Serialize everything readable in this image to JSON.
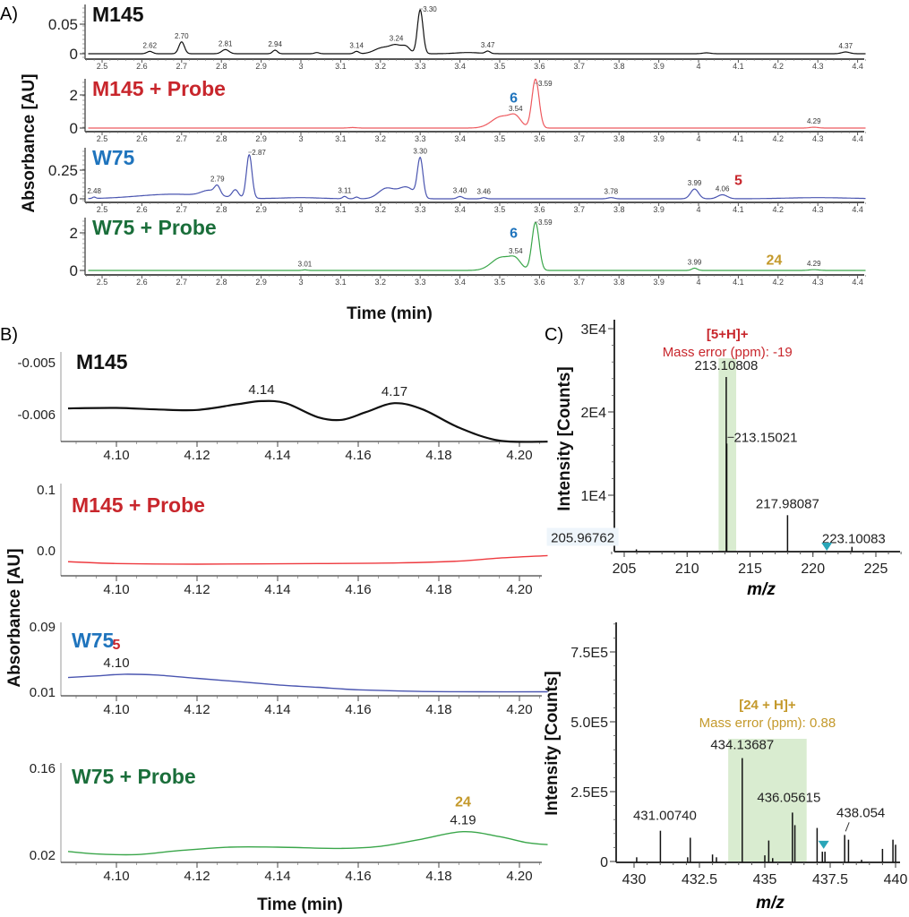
{
  "panel_labels": {
    "a": "A)",
    "b": "B)",
    "c": "C)"
  },
  "axis_labels": {
    "a_y": "Absorbance [AU]",
    "a_x": "Time (min)",
    "b_y": "Absorbance [AU]",
    "b_x": "Time (min)",
    "c1_y": "Intensity [Counts]",
    "c1_x": "m/z",
    "c2_y": "Intensity [Counts]",
    "c2_x": "m/z"
  },
  "colors": {
    "M145": "#111111",
    "M145_probe": "#e0333a",
    "W75": "#4a55b0",
    "W75_probe": "#3aa64a",
    "title_red": "#c8262c",
    "title_blue": "#1f74bd",
    "title_green": "#1a6e3a",
    "gold": "#c4992b",
    "highlight": "#d9ecd0",
    "marker": "#2aa6b8"
  },
  "chart_data": [
    {
      "panel": "A",
      "type": "line",
      "title": "M145",
      "title_color": "#111111",
      "line_color": "#111111",
      "xlim": [
        2.46,
        4.42
      ],
      "ylim": [
        -0.003,
        0.08
      ],
      "x_ticks": [
        "2.5",
        "2.6",
        "2.7",
        "2.8",
        "2.9",
        "3",
        "3.1",
        "3.2",
        "3.3",
        "3.4",
        "3.5",
        "3.6",
        "3.7",
        "3.8",
        "3.9",
        "4",
        "4.1",
        "4.2",
        "4.3",
        "4.4"
      ],
      "y_ticks": [
        {
          "v": 0,
          "label": "0"
        },
        {
          "v": 0.05,
          "label": "0.05"
        }
      ],
      "peaks": [
        {
          "rt": 2.62,
          "h": 0.004,
          "w": 0.007,
          "label": "2.62"
        },
        {
          "rt": 2.7,
          "h": 0.02,
          "w": 0.007,
          "label": "2.70"
        },
        {
          "rt": 2.81,
          "h": 0.007,
          "w": 0.009,
          "label": "2.81"
        },
        {
          "rt": 2.935,
          "h": 0.006,
          "w": 0.006,
          "label": "2.94"
        },
        {
          "rt": 3.04,
          "h": 0.002,
          "w": 0.006
        },
        {
          "rt": 3.14,
          "h": 0.004,
          "w": 0.006,
          "label": "3.14"
        },
        {
          "rt": 3.205,
          "h": 0.01,
          "w": 0.02
        },
        {
          "rt": 3.24,
          "h": 0.013,
          "w": 0.015,
          "label": "3.24"
        },
        {
          "rt": 3.265,
          "h": 0.01,
          "w": 0.01
        },
        {
          "rt": 3.3,
          "h": 0.074,
          "w": 0.007,
          "label": "3.30"
        },
        {
          "rt": 3.42,
          "h": 0.002,
          "w": 0.03
        },
        {
          "rt": 3.47,
          "h": 0.004,
          "w": 0.006,
          "label": "3.47"
        },
        {
          "rt": 4.02,
          "h": 0.0015,
          "w": 0.01
        },
        {
          "rt": 4.37,
          "h": 0.003,
          "w": 0.01,
          "label": "4.37"
        }
      ],
      "annotations": []
    },
    {
      "panel": "A",
      "type": "line",
      "title": "M145 + Probe",
      "title_color": "#c8262c",
      "line_color": "#ee5a5f",
      "xlim": [
        2.46,
        4.42
      ],
      "ylim": [
        -0.1,
        3.0
      ],
      "x_ticks": [
        "2.5",
        "2.6",
        "2.7",
        "2.8",
        "2.9",
        "3",
        "3.1",
        "3.2",
        "3.3",
        "3.4",
        "3.5",
        "3.6",
        "3.7",
        "3.8",
        "3.9",
        "4",
        "4.1",
        "4.2",
        "4.3",
        "4.4"
      ],
      "y_ticks": [
        {
          "v": 0,
          "label": "0"
        },
        {
          "v": 2,
          "label": "2"
        }
      ],
      "peaks": [
        {
          "rt": 3.13,
          "h": 0.03,
          "w": 0.01
        },
        {
          "rt": 3.505,
          "h": 0.7,
          "w": 0.025
        },
        {
          "rt": 3.54,
          "h": 0.55,
          "w": 0.014,
          "label": "3.54"
        },
        {
          "rt": 3.59,
          "h": 2.95,
          "w": 0.009,
          "label": "3.59"
        },
        {
          "rt": 4.29,
          "h": 0.05,
          "w": 0.01,
          "label": "4.29"
        }
      ],
      "annotations": [
        {
          "text": "6",
          "x": 3.535,
          "y": 1.55,
          "color": "#1f74bd"
        }
      ]
    },
    {
      "panel": "A",
      "type": "line",
      "title": "W75",
      "title_color": "#1f74bd",
      "line_color": "#4a55b0",
      "xlim": [
        2.46,
        4.42
      ],
      "ylim": [
        -0.02,
        0.45
      ],
      "x_ticks": [
        "2.5",
        "2.6",
        "2.7",
        "2.8",
        "2.9",
        "3",
        "3.1",
        "3.2",
        "3.3",
        "3.4",
        "3.5",
        "3.6",
        "3.7",
        "3.8",
        "3.9",
        "4",
        "4.1",
        "4.2",
        "4.3",
        "4.4"
      ],
      "y_ticks": [
        {
          "v": 0,
          "label": "0"
        },
        {
          "v": 0.25,
          "label": "0.25"
        }
      ],
      "peaks": [
        {
          "rt": 2.48,
          "h": 0.012,
          "w": 0.004,
          "label": "2.48"
        },
        {
          "rt": 2.68,
          "h": 0.04,
          "w": 0.09
        },
        {
          "rt": 2.77,
          "h": 0.05,
          "w": 0.02
        },
        {
          "rt": 2.79,
          "h": 0.07,
          "w": 0.007,
          "label": "2.79"
        },
        {
          "rt": 2.835,
          "h": 0.07,
          "w": 0.008
        },
        {
          "rt": 2.87,
          "h": 0.38,
          "w": 0.007,
          "label": "2.87"
        },
        {
          "rt": 3.0,
          "h": 0.01,
          "w": 0.05
        },
        {
          "rt": 3.11,
          "h": 0.02,
          "w": 0.005,
          "label": "3.11"
        },
        {
          "rt": 3.14,
          "h": 0.015,
          "w": 0.005
        },
        {
          "rt": 3.215,
          "h": 0.09,
          "w": 0.02
        },
        {
          "rt": 3.265,
          "h": 0.1,
          "w": 0.02
        },
        {
          "rt": 3.3,
          "h": 0.34,
          "w": 0.007,
          "label": "3.30"
        },
        {
          "rt": 3.4,
          "h": 0.02,
          "w": 0.007,
          "label": "3.40"
        },
        {
          "rt": 3.46,
          "h": 0.01,
          "w": 0.006,
          "label": "3.46"
        },
        {
          "rt": 3.78,
          "h": 0.01,
          "w": 0.008,
          "label": "3.78"
        },
        {
          "rt": 3.99,
          "h": 0.085,
          "w": 0.01,
          "label": "3.99"
        },
        {
          "rt": 4.06,
          "h": 0.035,
          "w": 0.012,
          "label": "4.06"
        },
        {
          "rt": 4.3,
          "h": 0.01,
          "w": 0.08
        }
      ],
      "annotations": [
        {
          "text": "5",
          "x": 4.1,
          "y": 0.12,
          "color": "#c8262c"
        }
      ]
    },
    {
      "panel": "A",
      "type": "line",
      "title": "W75 + Probe",
      "title_color": "#1a6e3a",
      "line_color": "#3aa64a",
      "xlim": [
        2.46,
        4.42
      ],
      "ylim": [
        -0.1,
        2.8
      ],
      "x_ticks": [
        "2.5",
        "2.6",
        "2.7",
        "2.8",
        "2.9",
        "3",
        "3.1",
        "3.2",
        "3.3",
        "3.4",
        "3.5",
        "3.6",
        "3.7",
        "3.8",
        "3.9",
        "4",
        "4.1",
        "4.2",
        "4.3",
        "4.4"
      ],
      "y_ticks": [
        {
          "v": 0,
          "label": "0"
        },
        {
          "v": 2,
          "label": "2"
        }
      ],
      "peaks": [
        {
          "rt": 3.01,
          "h": 0.03,
          "w": 0.006,
          "label": "3.01"
        },
        {
          "rt": 3.505,
          "h": 0.7,
          "w": 0.025
        },
        {
          "rt": 3.54,
          "h": 0.45,
          "w": 0.014,
          "label": "3.54"
        },
        {
          "rt": 3.59,
          "h": 2.55,
          "w": 0.009,
          "label": "3.59"
        },
        {
          "rt": 3.99,
          "h": 0.12,
          "w": 0.007,
          "label": "3.99"
        },
        {
          "rt": 4.29,
          "h": 0.04,
          "w": 0.012,
          "label": "4.29"
        }
      ],
      "annotations": [
        {
          "text": "6",
          "x": 3.535,
          "y": 1.75,
          "color": "#1f74bd"
        },
        {
          "text": "24",
          "x": 4.19,
          "y": 0.3,
          "color": "#c4992b"
        }
      ]
    },
    {
      "panel": "B",
      "type": "line",
      "title": "M145",
      "title_color": "#111111",
      "line_color": "#111111",
      "xlim": [
        4.088,
        4.207
      ],
      "ylim": [
        -0.0066,
        -0.0048
      ],
      "x_ticks": [
        "4.10",
        "4.12",
        "4.14",
        "4.16",
        "4.18",
        "4.20"
      ],
      "y_ticks": [
        {
          "v": -0.005,
          "label": "-0.005"
        },
        {
          "v": -0.006,
          "label": "-0.006"
        }
      ],
      "points": [
        [
          4.088,
          -0.00588
        ],
        [
          4.1,
          -0.00587
        ],
        [
          4.11,
          -0.0059
        ],
        [
          4.12,
          -0.00591
        ],
        [
          4.13,
          -0.0058
        ],
        [
          4.136,
          -0.00574
        ],
        [
          4.142,
          -0.00578
        ],
        [
          4.15,
          -0.00605
        ],
        [
          4.156,
          -0.0061
        ],
        [
          4.162,
          -0.00595
        ],
        [
          4.169,
          -0.00578
        ],
        [
          4.176,
          -0.0059
        ],
        [
          4.185,
          -0.00625
        ],
        [
          4.195,
          -0.0065
        ],
        [
          4.207,
          -0.00652
        ]
      ],
      "peak_labels": [
        {
          "x": 4.136,
          "label": "4.14"
        },
        {
          "x": 4.169,
          "label": "4.17"
        }
      ],
      "annotations": []
    },
    {
      "panel": "B",
      "type": "line",
      "title": "M145 + Probe",
      "title_color": "#c8262c",
      "line_color": "#ee3a3f",
      "xlim": [
        4.088,
        4.207
      ],
      "ylim": [
        -0.045,
        0.11
      ],
      "x_ticks": [
        "4.10",
        "4.12",
        "4.14",
        "4.16",
        "4.18",
        "4.20"
      ],
      "y_ticks": [
        {
          "v": 0.1,
          "label": "0.1"
        },
        {
          "v": 0.0,
          "label": "0.0"
        }
      ],
      "points": [
        [
          4.088,
          -0.018
        ],
        [
          4.1,
          -0.021
        ],
        [
          4.12,
          -0.022
        ],
        [
          4.15,
          -0.021
        ],
        [
          4.17,
          -0.02
        ],
        [
          4.185,
          -0.017
        ],
        [
          4.195,
          -0.012
        ],
        [
          4.207,
          -0.008
        ]
      ],
      "peak_labels": [],
      "annotations": []
    },
    {
      "panel": "B",
      "type": "line",
      "title": "W75",
      "title_color": "#1f74bd",
      "line_color": "#4a55b0",
      "xlim": [
        4.088,
        4.207
      ],
      "ylim": [
        0.005,
        0.095
      ],
      "x_ticks": [
        "4.10",
        "4.12",
        "4.14",
        "4.16",
        "4.18",
        "4.20"
      ],
      "y_ticks": [
        {
          "v": 0.09,
          "label": "0.09"
        },
        {
          "v": 0.01,
          "label": "0.01"
        }
      ],
      "points": [
        [
          4.088,
          0.028
        ],
        [
          4.095,
          0.03
        ],
        [
          4.102,
          0.032
        ],
        [
          4.11,
          0.031
        ],
        [
          4.12,
          0.027
        ],
        [
          4.13,
          0.023
        ],
        [
          4.14,
          0.019
        ],
        [
          4.15,
          0.016
        ],
        [
          4.16,
          0.013
        ],
        [
          4.175,
          0.011
        ],
        [
          4.19,
          0.0105
        ],
        [
          4.207,
          0.0105
        ]
      ],
      "peak_labels": [
        {
          "x": 4.1,
          "label": "4.10"
        }
      ],
      "annotations": [
        {
          "text": "5",
          "x": 4.1,
          "color": "#c8262c"
        }
      ]
    },
    {
      "panel": "B",
      "type": "line",
      "title": "W75 + Probe",
      "title_color": "#1a6e3a",
      "line_color": "#3aa64a",
      "xlim": [
        4.088,
        4.207
      ],
      "ylim": [
        0.01,
        0.17
      ],
      "x_ticks": [
        "4.10",
        "4.12",
        "4.14",
        "4.16",
        "4.18",
        "4.20"
      ],
      "y_ticks": [
        {
          "v": 0.16,
          "label": "0.16"
        },
        {
          "v": 0.02,
          "label": "0.02"
        }
      ],
      "points": [
        [
          4.088,
          0.026
        ],
        [
          4.095,
          0.022
        ],
        [
          4.105,
          0.021
        ],
        [
          4.115,
          0.027
        ],
        [
          4.128,
          0.033
        ],
        [
          4.14,
          0.033
        ],
        [
          4.155,
          0.031
        ],
        [
          4.165,
          0.034
        ],
        [
          4.175,
          0.045
        ],
        [
          4.186,
          0.058
        ],
        [
          4.195,
          0.05
        ],
        [
          4.202,
          0.04
        ],
        [
          4.207,
          0.037
        ]
      ],
      "peak_labels": [
        {
          "x": 4.186,
          "label": "4.19"
        }
      ],
      "annotations": [
        {
          "text": "24",
          "x": 4.186,
          "color": "#c4992b"
        }
      ]
    },
    {
      "panel": "C",
      "type": "bar",
      "title": "[5+H]+",
      "subtitle": "Mass error (ppm): -19",
      "title_color": "#c8262c",
      "xlim": [
        204,
        227
      ],
      "ylim": [
        3200,
        31000
      ],
      "x_ticks": [
        {
          "v": 205,
          "label": "205"
        },
        {
          "v": 210,
          "label": "210"
        },
        {
          "v": 215,
          "label": "215"
        },
        {
          "v": 220,
          "label": "220"
        },
        {
          "v": 225,
          "label": "225"
        }
      ],
      "y_ticks": [
        {
          "v": 10000,
          "label": "1E4"
        },
        {
          "v": 20000,
          "label": "2E4"
        },
        {
          "v": 30000,
          "label": "3E4"
        }
      ],
      "highlight": [
        212.5,
        213.9
      ],
      "sticks": [
        {
          "mz": 205.96762,
          "i": 3500,
          "label": "205.96762"
        },
        {
          "mz": 213.10808,
          "i": 24200,
          "label": "213.10808"
        },
        {
          "mz": 213.15021,
          "i": 16200,
          "label": "213.15021"
        },
        {
          "mz": 217.98087,
          "i": 7600,
          "label": "217.98087"
        },
        {
          "mz": 223.10083,
          "i": 3800,
          "label": "223.10083"
        }
      ],
      "marker_mz": 221.1
    },
    {
      "panel": "C",
      "type": "bar",
      "title": "[24 + H]+",
      "subtitle": "Mass error (ppm): 0.88",
      "title_color": "#c4992b",
      "xlim": [
        429.3,
        440.2
      ],
      "ylim": [
        0,
        850000
      ],
      "x_ticks": [
        {
          "v": 430,
          "label": "430"
        },
        {
          "v": 432.5,
          "label": "432.5"
        },
        {
          "v": 435,
          "label": "435"
        },
        {
          "v": 437.5,
          "label": "437.5"
        },
        {
          "v": 440,
          "label": "440"
        }
      ],
      "y_ticks": [
        {
          "v": 0,
          "label": "0"
        },
        {
          "v": 250000,
          "label": "2.5E5"
        },
        {
          "v": 500000,
          "label": "5.0E5"
        },
        {
          "v": 750000,
          "label": "7.5E5"
        }
      ],
      "highlight": [
        433.6,
        436.6
      ],
      "sticks": [
        {
          "mz": 430.1,
          "i": 15000
        },
        {
          "mz": 431.0074,
          "i": 110000,
          "label": "431.00740"
        },
        {
          "mz": 432.15,
          "i": 85000
        },
        {
          "mz": 432.05,
          "i": 15000
        },
        {
          "mz": 433.0,
          "i": 25000
        },
        {
          "mz": 433.15,
          "i": 15000
        },
        {
          "mz": 434.13687,
          "i": 370000,
          "label": "434.13687"
        },
        {
          "mz": 435.0,
          "i": 22000
        },
        {
          "mz": 435.15,
          "i": 75000
        },
        {
          "mz": 435.3,
          "i": 12000
        },
        {
          "mz": 436.05615,
          "i": 175000,
          "label": "436.05615"
        },
        {
          "mz": 436.15,
          "i": 130000
        },
        {
          "mz": 437.0,
          "i": 120000
        },
        {
          "mz": 437.2,
          "i": 35000
        },
        {
          "mz": 437.3,
          "i": 35000
        },
        {
          "mz": 438.054,
          "i": 95000,
          "label": "438.054"
        },
        {
          "mz": 438.2,
          "i": 78000
        },
        {
          "mz": 438.7,
          "i": 6000
        },
        {
          "mz": 439.5,
          "i": 45000
        },
        {
          "mz": 439.9,
          "i": 78000
        },
        {
          "mz": 440.0,
          "i": 60000
        }
      ],
      "marker_mz": 437.25
    }
  ]
}
